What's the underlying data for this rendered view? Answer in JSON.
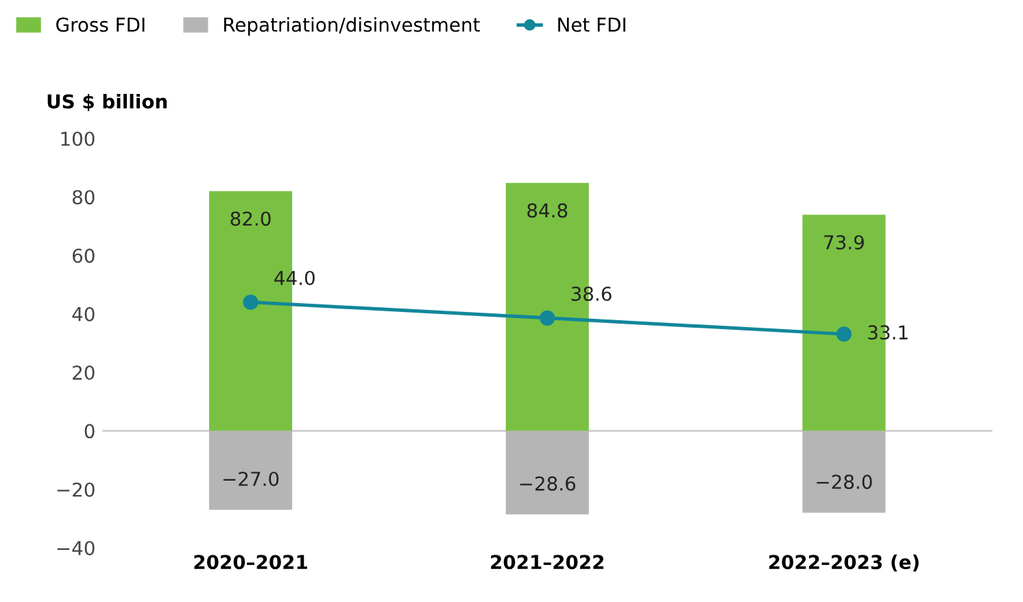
{
  "chart_data": {
    "type": "bar",
    "stacked": true,
    "ylabel": "US $ billion",
    "categories": [
      "2020–2021",
      "2021–2022",
      "2022–2023 (e)"
    ],
    "series": [
      {
        "name": "Gross FDI",
        "color": "#7ac143",
        "values": [
          82.0,
          84.8,
          73.9
        ],
        "value_labels": [
          "82.0",
          "84.8",
          "73.9"
        ]
      },
      {
        "name": "Repatriation/disinvestment",
        "color": "#b5b5b5",
        "values": [
          -27.0,
          -28.6,
          -28.0
        ],
        "value_labels": [
          "−27.0",
          "−28.6",
          "−28.0"
        ]
      },
      {
        "name": "Net FDI",
        "type": "line",
        "color": "#12879a",
        "values": [
          44.0,
          38.6,
          33.1
        ],
        "marker": "circle",
        "value_labels": [
          "44.0",
          "38.6",
          "33.1"
        ]
      }
    ],
    "ylim": [
      -40,
      100
    ],
    "yticks": [
      -40,
      -20,
      0,
      20,
      40,
      60,
      80,
      100
    ],
    "ref_lines": [
      {
        "axis": "y",
        "value": 0,
        "color": "#cccccc"
      }
    ],
    "grid": false,
    "legend": "top left"
  }
}
